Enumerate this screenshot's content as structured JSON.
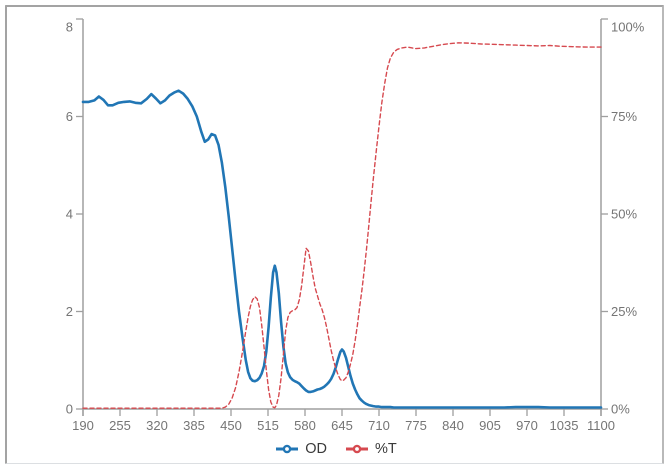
{
  "window": {
    "background": "#ffffff",
    "card_border_color": "#a3a3a3",
    "card_bottom_edge_color": "#dcdfe2"
  },
  "chart_data": {
    "type": "line",
    "title": "",
    "xlabel": "",
    "ylabel_left": "",
    "ylabel_right": "",
    "grid": false,
    "axis_color": "#9f9f9f",
    "tick_label_color": "#757575",
    "x_axis": {
      "range": [
        190,
        1100
      ],
      "ticks": [
        190,
        255,
        320,
        385,
        450,
        515,
        580,
        645,
        710,
        775,
        840,
        905,
        970,
        1035,
        1100
      ]
    },
    "y_left": {
      "range": [
        0,
        8
      ],
      "ticks": [
        0,
        2,
        4,
        6,
        8
      ]
    },
    "y_right": {
      "range": [
        0,
        100
      ],
      "tick_values": [
        0,
        25,
        50,
        75,
        100
      ],
      "tick_labels": [
        "0%",
        "25%",
        "50%",
        "75%",
        "100%"
      ]
    },
    "x": [
      190,
      200,
      210,
      218,
      226,
      234,
      242,
      252,
      262,
      272,
      282,
      292,
      302,
      310,
      318,
      326,
      334,
      342,
      350,
      358,
      366,
      374,
      382,
      390,
      398,
      404,
      410,
      416,
      422,
      428,
      434,
      440,
      446,
      452,
      458,
      464,
      470,
      476,
      480,
      484,
      488,
      492,
      496,
      500,
      504,
      508,
      512,
      516,
      520,
      524,
      527,
      530,
      534,
      538,
      542,
      546,
      550,
      554,
      558,
      562,
      566,
      570,
      574,
      578,
      582,
      586,
      590,
      594,
      598,
      602,
      606,
      610,
      614,
      618,
      622,
      626,
      630,
      634,
      638,
      642,
      645,
      648,
      652,
      656,
      660,
      664,
      668,
      672,
      676,
      680,
      684,
      688,
      692,
      696,
      700,
      705,
      710,
      715,
      720,
      725,
      730,
      736,
      742,
      750,
      760,
      775,
      790,
      805,
      820,
      835,
      850,
      870,
      890,
      910,
      930,
      950,
      970,
      990,
      1010,
      1030,
      1050,
      1075,
      1100
    ],
    "series": [
      {
        "name": "OD",
        "axis": "left",
        "style": "solid",
        "color": "#2176b5",
        "values": [
          6.3,
          6.3,
          6.33,
          6.41,
          6.34,
          6.23,
          6.23,
          6.28,
          6.3,
          6.31,
          6.28,
          6.27,
          6.36,
          6.46,
          6.37,
          6.27,
          6.33,
          6.43,
          6.49,
          6.53,
          6.47,
          6.36,
          6.21,
          6.0,
          5.68,
          5.48,
          5.53,
          5.64,
          5.61,
          5.42,
          5.05,
          4.55,
          3.95,
          3.3,
          2.62,
          2.0,
          1.48,
          1.0,
          0.76,
          0.63,
          0.58,
          0.57,
          0.59,
          0.64,
          0.73,
          0.88,
          1.18,
          1.68,
          2.28,
          2.8,
          2.94,
          2.8,
          2.38,
          1.78,
          1.28,
          0.94,
          0.75,
          0.65,
          0.6,
          0.57,
          0.55,
          0.52,
          0.47,
          0.42,
          0.38,
          0.35,
          0.35,
          0.36,
          0.38,
          0.4,
          0.41,
          0.43,
          0.46,
          0.5,
          0.55,
          0.62,
          0.72,
          0.85,
          1.02,
          1.17,
          1.22,
          1.18,
          1.05,
          0.86,
          0.68,
          0.52,
          0.4,
          0.3,
          0.22,
          0.17,
          0.13,
          0.1,
          0.08,
          0.07,
          0.06,
          0.05,
          0.05,
          0.04,
          0.04,
          0.04,
          0.04,
          0.03,
          0.03,
          0.03,
          0.03,
          0.03,
          0.03,
          0.03,
          0.03,
          0.03,
          0.03,
          0.03,
          0.03,
          0.03,
          0.03,
          0.04,
          0.04,
          0.04,
          0.03,
          0.03,
          0.03,
          0.03,
          0.03
        ]
      },
      {
        "name": "%T",
        "axis": "right",
        "style": "dashed",
        "color": "#d6494f",
        "values": [
          0.2,
          0.2,
          0.2,
          0.2,
          0.2,
          0.2,
          0.2,
          0.2,
          0.2,
          0.2,
          0.2,
          0.2,
          0.2,
          0.2,
          0.2,
          0.2,
          0.2,
          0.2,
          0.2,
          0.2,
          0.2,
          0.2,
          0.2,
          0.2,
          0.2,
          0.2,
          0.2,
          0.2,
          0.2,
          0.2,
          0.2,
          0.5,
          1.2,
          2.8,
          5.5,
          9.5,
          14.5,
          20.0,
          23.5,
          26.3,
          28.0,
          28.8,
          28.2,
          26.0,
          21.5,
          16.0,
          10.0,
          5.0,
          1.8,
          0.5,
          0.3,
          1.0,
          3.5,
          8.0,
          14.0,
          20.0,
          23.5,
          24.8,
          25.2,
          25.4,
          26.0,
          28.0,
          31.5,
          36.5,
          41.2,
          40.5,
          37.5,
          34.0,
          31.0,
          29.0,
          27.0,
          25.5,
          23.5,
          21.0,
          18.0,
          15.0,
          12.5,
          10.5,
          8.8,
          7.6,
          7.2,
          7.4,
          8.0,
          9.5,
          11.5,
          14.0,
          17.5,
          21.5,
          26.0,
          30.5,
          35.5,
          41.0,
          47.0,
          53.0,
          59.0,
          66.0,
          72.5,
          78.5,
          83.5,
          87.5,
          90.0,
          91.5,
          92.2,
          92.6,
          92.8,
          92.4,
          92.6,
          93.0,
          93.4,
          93.7,
          93.9,
          93.8,
          93.6,
          93.5,
          93.4,
          93.3,
          93.2,
          93.1,
          93.2,
          93.0,
          92.9,
          92.8,
          92.8
        ]
      }
    ],
    "legend": {
      "position": "bottom",
      "text_color": "#3a3a3a",
      "items": [
        {
          "label": "OD",
          "color": "#2176b5"
        },
        {
          "label": "%T",
          "color": "#d6494f"
        }
      ]
    }
  }
}
